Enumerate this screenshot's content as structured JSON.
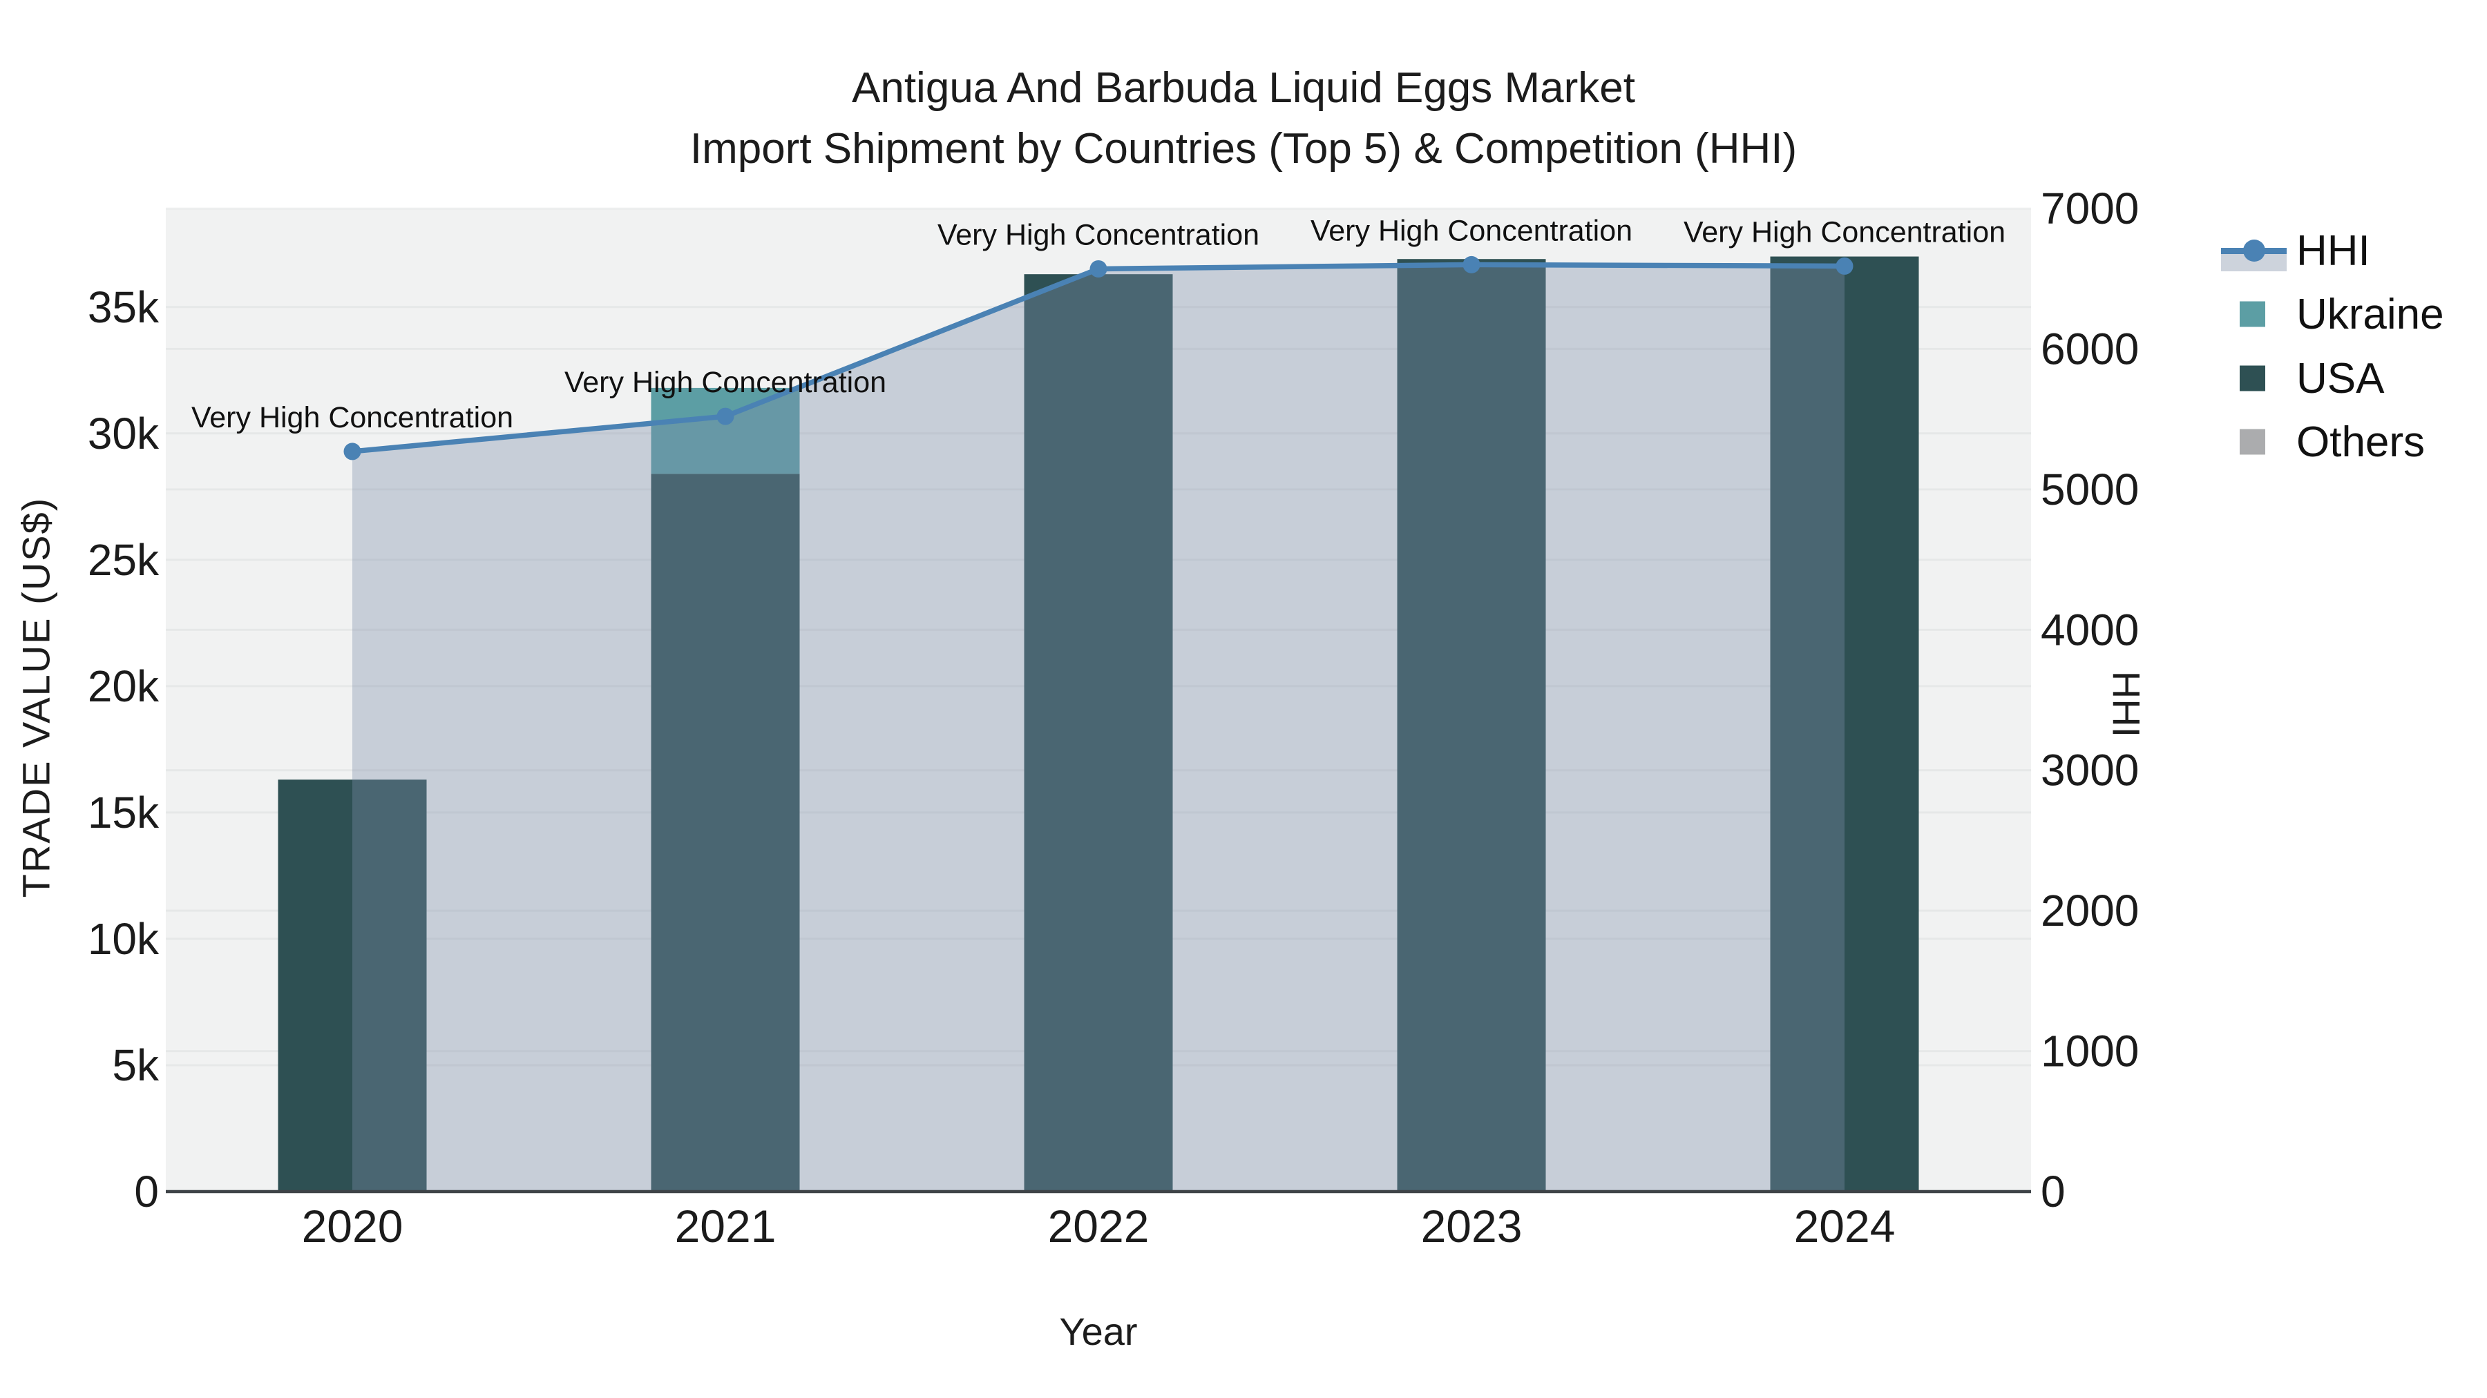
{
  "title": {
    "line1": "Antigua And Barbuda Liquid Eggs Market",
    "line2": "Import Shipment by Countries (Top 5) & Competition (HHI)"
  },
  "legend": {
    "position": "right",
    "items": [
      {
        "label": "HHI",
        "swatch": "line-fill",
        "color": "#4A82B4",
        "fill_color": "#CDD3DC"
      },
      {
        "label": "Ukraine",
        "swatch": "square",
        "color": "#5C9EA4"
      },
      {
        "label": "USA",
        "swatch": "square",
        "color": "#2E5053"
      },
      {
        "label": "Others",
        "swatch": "square",
        "color": "#ABACAE"
      }
    ]
  },
  "chart_data": {
    "type": "bar",
    "subtype": "stacked-bars-with-line-on-secondary-axis",
    "categories": [
      "2020",
      "2021",
      "2022",
      "2023",
      "2024"
    ],
    "series": [
      {
        "name": "USA",
        "type": "bar",
        "axis": "left",
        "color": "#2E5053",
        "values": [
          16300,
          28400,
          36300,
          36900,
          37000
        ]
      },
      {
        "name": "Ukraine",
        "type": "bar",
        "axis": "left",
        "color": "#5C9EA4",
        "values": [
          0,
          3400,
          0,
          0,
          0
        ]
      },
      {
        "name": "Others",
        "type": "bar",
        "axis": "left",
        "color": "#ABACAE",
        "values": [
          0,
          0,
          0,
          0,
          0
        ]
      },
      {
        "name": "HHI",
        "type": "line",
        "axis": "right",
        "color": "#4A82B4",
        "fill_color": "rgba(126,140,168,0.36)",
        "values": [
          5270,
          5520,
          6570,
          6600,
          6590
        ]
      }
    ],
    "annotations": [
      {
        "category": "2020",
        "text": "Very High Concentration"
      },
      {
        "category": "2021",
        "text": "Very High Concentration"
      },
      {
        "category": "2022",
        "text": "Very High Concentration"
      },
      {
        "category": "2023",
        "text": "Very High Concentration"
      },
      {
        "category": "2024",
        "text": "Very High Concentration"
      }
    ],
    "x_axis": {
      "title": "Year"
    },
    "left_axis": {
      "title": "TRADE VALUE (US$)",
      "tick_labels": [
        "0",
        "5k",
        "10k",
        "15k",
        "20k",
        "25k",
        "30k",
        "35k"
      ],
      "tick_values": [
        0,
        5000,
        10000,
        15000,
        20000,
        25000,
        30000,
        35000
      ],
      "range": [
        0,
        38900
      ]
    },
    "right_axis": {
      "title": "HHI",
      "tick_labels": [
        "0",
        "1000",
        "2000",
        "3000",
        "4000",
        "5000",
        "6000",
        "7000"
      ],
      "tick_values": [
        0,
        1000,
        2000,
        3000,
        4000,
        5000,
        6000,
        7000
      ],
      "range": [
        0,
        7000
      ]
    },
    "grid": true,
    "plot_bg": "#F1F2F2",
    "axis_line_color": "#3E4347",
    "tick_label_color": "#1b1b1b",
    "annotation_color": "#111111"
  }
}
